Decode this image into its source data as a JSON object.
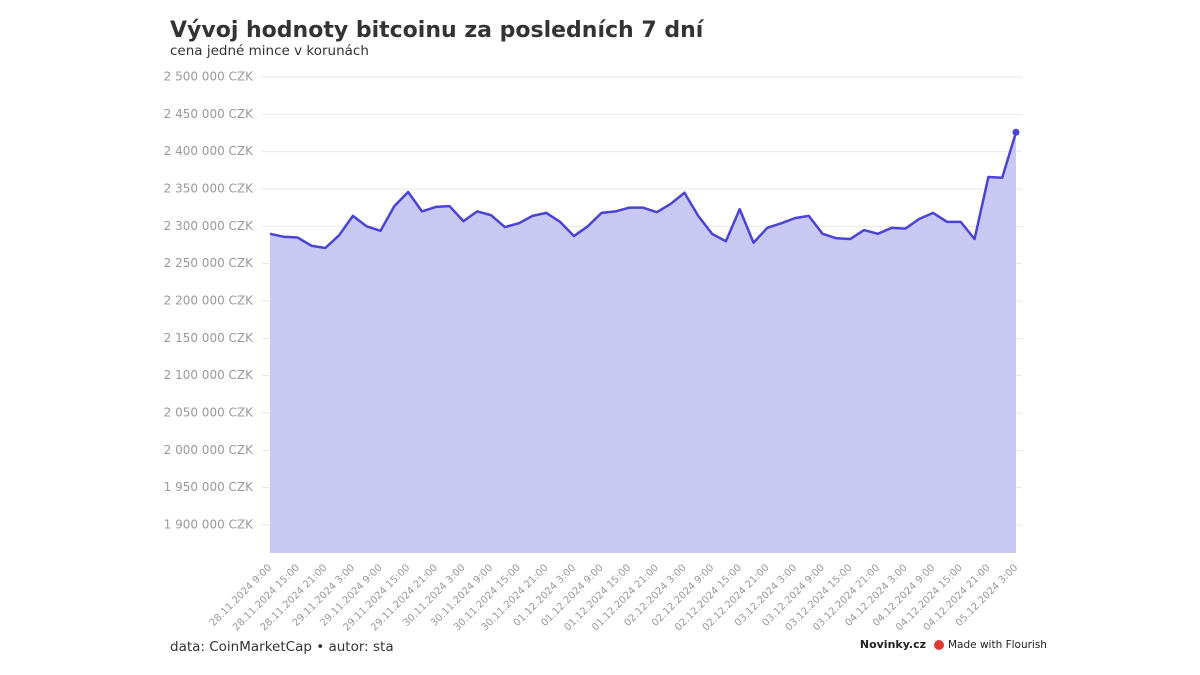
{
  "chart_data": {
    "type": "area",
    "title": "Vývoj hodnoty bitcoinu za posledních 7 dní",
    "subtitle": "cena jedné mince v korunách",
    "source": "data: CoinMarketCap • autor: sta",
    "branding": [
      "Novinky.cz",
      "Made with Flourish"
    ],
    "categories": [
      "28.11.2024 9:00",
      null,
      "28.11.2024 15:00",
      null,
      "28.11.2024 21:00",
      null,
      "29.11.2024 3:00",
      null,
      "29.11.2024 9:00",
      null,
      "29.11.2024 15:00",
      null,
      "29.11.2024 21:00",
      null,
      "30.11.2024 3:00",
      null,
      "30.11.2024 9:00",
      null,
      "30.11.2024 15:00",
      null,
      "30.11.2024 21:00",
      null,
      "01.12.2024 3:00",
      null,
      "01.12.2024 9:00",
      null,
      "01.12.2024 15:00",
      null,
      "01.12.2024 21:00",
      null,
      "02.12.2024 3:00",
      null,
      "02.12.2024 9:00",
      null,
      "02.12.2024 15:00",
      null,
      "02.12.2024 21:00",
      null,
      "03.12.2024 3:00",
      null,
      "03.12.2024 9:00",
      null,
      "03.12.2024 15:00",
      null,
      "03.12.2024 21:00",
      null,
      "04.12.2024 3:00",
      null,
      "04.12.2024 9:00",
      null,
      "04.12.2024 15:00",
      null,
      "04.12.2024 21:00",
      null,
      "05.12.2024 3:00"
    ],
    "series": [
      {
        "name": "BTC",
        "color": "#4a43d6",
        "fill": "#c9c8f3",
        "values": [
          2290000,
          2286000,
          2285000,
          2274000,
          2271000,
          2288000,
          2314000,
          2300000,
          2294000,
          2327000,
          2346000,
          2320000,
          2326000,
          2327000,
          2307000,
          2320000,
          2315000,
          2299000,
          2304000,
          2314000,
          2318000,
          2306000,
          2287000,
          2300000,
          2318000,
          2320000,
          2325000,
          2325000,
          2319000,
          2330000,
          2345000,
          2314000,
          2290000,
          2280000,
          2323000,
          2278000,
          2298000,
          2304000,
          2311000,
          2314000,
          2290000,
          2284000,
          2283000,
          2295000,
          2290000,
          2298000,
          2297000,
          2310000,
          2318000,
          2306000,
          2306000,
          2283000,
          2366000,
          2365000,
          2426000
        ]
      }
    ],
    "ylim": [
      1862500,
      2500000
    ],
    "yticks": [
      {
        "value": 1900000,
        "label": "1 900 000 CZK"
      },
      {
        "value": 1950000,
        "label": "1 950 000 CZK"
      },
      {
        "value": 2000000,
        "label": "2 000 000 CZK"
      },
      {
        "value": 2050000,
        "label": "2 050 000 CZK"
      },
      {
        "value": 2100000,
        "label": "2 100 000 CZK"
      },
      {
        "value": 2150000,
        "label": "2 150 000 CZK"
      },
      {
        "value": 2200000,
        "label": "2 200 000 CZK"
      },
      {
        "value": 2250000,
        "label": "2 250 000 CZK"
      },
      {
        "value": 2300000,
        "label": "2 300 000 CZK"
      },
      {
        "value": 2350000,
        "label": "2 350 000 CZK"
      },
      {
        "value": 2400000,
        "label": "2 400 000 CZK"
      },
      {
        "value": 2450000,
        "label": "2 450 000 CZK"
      },
      {
        "value": 2500000,
        "label": "2 500 000 CZK"
      }
    ],
    "grid": true
  }
}
